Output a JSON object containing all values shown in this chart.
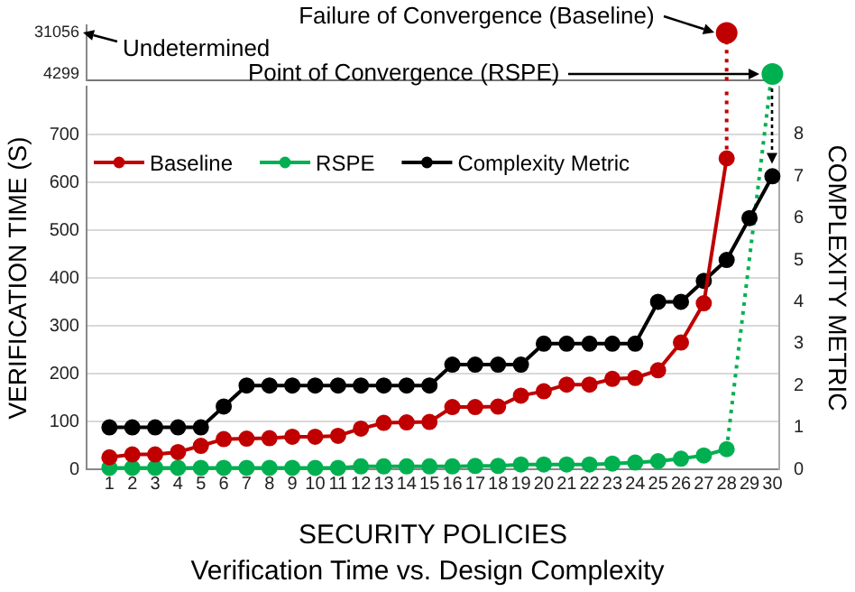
{
  "chart_data": [
    {
      "type": "line",
      "xlim": [
        0,
        30.3
      ],
      "ylim": [
        0,
        36000
      ],
      "yticks": [
        4299,
        31056
      ],
      "tick_labels": "y",
      "marker": "circle",
      "series": [
        {
          "color": "#c00000",
          "line_style": "dotted",
          "marker": "none",
          "x": [
            28,
            28
          ],
          "values": [
            0,
            31056
          ]
        },
        {
          "type": "scatter",
          "color": "#c00000",
          "x": [
            28
          ],
          "values": [
            31056
          ]
        },
        {
          "type": "scatter",
          "color": "#00b050",
          "x": [
            30
          ],
          "values": [
            4299
          ]
        }
      ],
      "annotations": [
        "Undetermined",
        "Failure of Convergence (Baseline)",
        "Point of Convergence (RSPE)"
      ]
    },
    {
      "type": "line",
      "title": "Verification Time vs. Design Complexity",
      "xlabel": "SECURITY POLICIES",
      "ylabel": "VERIFICATION TIME (S)",
      "y2label": "COMPLEXITY METRIC",
      "xlim": [
        0,
        30.3
      ],
      "xticks": [
        1,
        2,
        3,
        4,
        5,
        6,
        7,
        8,
        9,
        10,
        11,
        12,
        13,
        14,
        15,
        16,
        17,
        18,
        19,
        20,
        21,
        22,
        23,
        24,
        25,
        26,
        27,
        28,
        29,
        30
      ],
      "ylim": [
        0,
        800
      ],
      "yticks": [
        0,
        100,
        200,
        300,
        400,
        500,
        600,
        700
      ],
      "y2lim": [
        0,
        9.14
      ],
      "y2ticks": [
        0,
        1,
        2,
        3,
        4,
        5,
        6,
        7,
        8
      ],
      "grid": "y",
      "legend": "top left",
      "marker": "circle",
      "line_style": "solid",
      "series": [
        {
          "name": "Baseline",
          "color": "#c00000",
          "x": [
            1,
            2,
            3,
            4,
            5,
            6,
            7,
            8,
            9,
            10,
            11,
            12,
            13,
            14,
            15,
            16,
            17,
            18,
            19,
            20,
            21,
            22,
            23,
            24,
            25,
            26,
            27,
            28
          ],
          "values": [
            25,
            31,
            31,
            36,
            49,
            63,
            64,
            65,
            68,
            68,
            70,
            85,
            97,
            98,
            99,
            130,
            130,
            131,
            154,
            163,
            177,
            177,
            189,
            191,
            207,
            265,
            347,
            650
          ]
        },
        {
          "name": "RSPE",
          "color": "#00b050",
          "x": [
            1,
            2,
            3,
            4,
            5,
            6,
            7,
            8,
            9,
            10,
            11,
            12,
            13,
            14,
            15,
            16,
            17,
            18,
            19,
            20,
            21,
            22,
            23,
            24,
            25,
            26,
            27,
            28
          ],
          "values": [
            3,
            3,
            3,
            3,
            3,
            3,
            3,
            3,
            3,
            3,
            3,
            6,
            6,
            6,
            6,
            6,
            7,
            7,
            10,
            10,
            10,
            10,
            12,
            14,
            17,
            22,
            29,
            42
          ]
        },
        {
          "name": "Complexity Metric",
          "color": "#000000",
          "axis": "y2",
          "x": [
            1,
            2,
            3,
            4,
            5,
            6,
            7,
            8,
            9,
            10,
            11,
            12,
            13,
            14,
            15,
            16,
            17,
            18,
            19,
            20,
            21,
            22,
            23,
            24,
            25,
            26,
            27,
            28,
            29,
            30
          ],
          "values": [
            1,
            1,
            1,
            1,
            1,
            1.5,
            2,
            2,
            2,
            2,
            2,
            2,
            2,
            2,
            2,
            2.5,
            2.5,
            2.5,
            2.5,
            3,
            3,
            3,
            3,
            3,
            4,
            4,
            4.5,
            5,
            6,
            7
          ]
        },
        {
          "color": "#c00000",
          "line_style": "dotted",
          "marker": "none",
          "x": [
            28,
            28
          ],
          "values": [
            650,
            800
          ]
        },
        {
          "color": "#00b050",
          "line_style": "dotted",
          "marker": "none",
          "x": [
            28,
            29.9
          ],
          "values": [
            42,
            800
          ]
        }
      ]
    }
  ]
}
